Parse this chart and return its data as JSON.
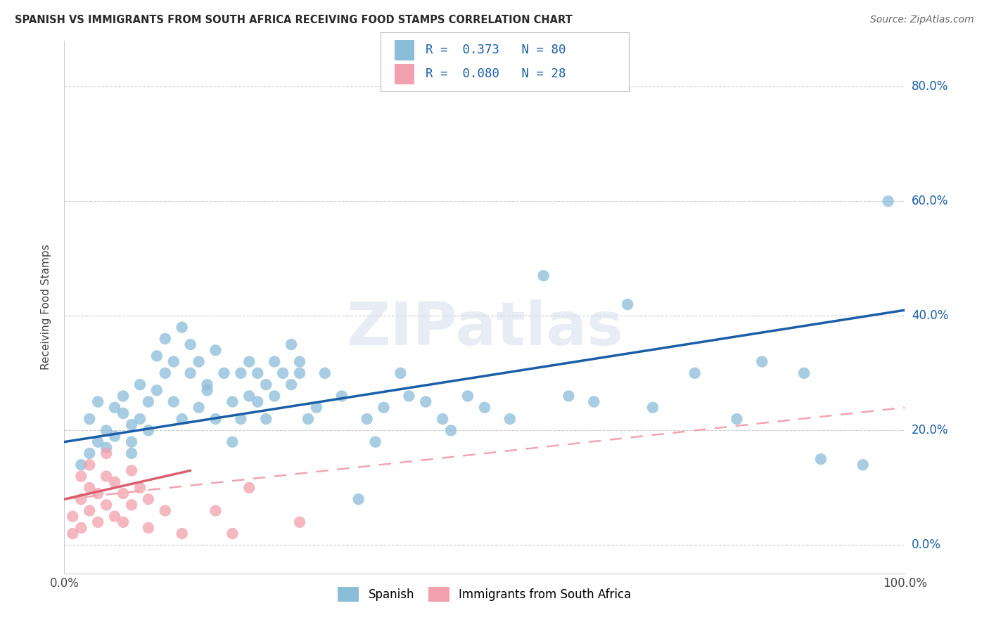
{
  "title": "SPANISH VS IMMIGRANTS FROM SOUTH AFRICA RECEIVING FOOD STAMPS CORRELATION CHART",
  "source": "Source: ZipAtlas.com",
  "ylabel": "Receiving Food Stamps",
  "y_tick_vals": [
    0,
    20,
    40,
    60,
    80
  ],
  "y_tick_labels": [
    "0.0%",
    "20.0%",
    "40.0%",
    "60.0%",
    "80.0%"
  ],
  "x_range": [
    0,
    100
  ],
  "y_range": [
    -5,
    88
  ],
  "legend1_label": "Spanish",
  "legend2_label": "Immigrants from South Africa",
  "R1": "0.373",
  "N1": "80",
  "R2": "0.080",
  "N2": "28",
  "color_blue": "#8BBDD9",
  "color_pink": "#F2A0AD",
  "color_blue_line": "#1A5EA8",
  "color_pink_line_solid": "#D95F6E",
  "color_pink_line_dashed": "#F2A0AD",
  "watermark_text": "ZIPatlas",
  "watermark_color": "#D5DEED",
  "blue_x": [
    2,
    3,
    3,
    4,
    4,
    5,
    5,
    6,
    6,
    7,
    7,
    8,
    8,
    8,
    9,
    9,
    10,
    10,
    11,
    11,
    12,
    12,
    13,
    13,
    14,
    14,
    15,
    15,
    16,
    16,
    17,
    17,
    18,
    18,
    19,
    20,
    20,
    21,
    21,
    22,
    22,
    23,
    23,
    24,
    24,
    25,
    25,
    26,
    27,
    27,
    28,
    28,
    29,
    30,
    31,
    33,
    35,
    36,
    37,
    38,
    40,
    41,
    43,
    45,
    46,
    48,
    50,
    53,
    57,
    60,
    63,
    67,
    70,
    75,
    80,
    83,
    88,
    90,
    95,
    98
  ],
  "blue_y": [
    14,
    16,
    22,
    18,
    25,
    20,
    17,
    24,
    19,
    23,
    26,
    21,
    16,
    18,
    28,
    22,
    25,
    20,
    33,
    27,
    30,
    36,
    25,
    32,
    38,
    22,
    35,
    30,
    24,
    32,
    28,
    27,
    22,
    34,
    30,
    18,
    25,
    22,
    30,
    26,
    32,
    25,
    30,
    28,
    22,
    32,
    26,
    30,
    28,
    35,
    30,
    32,
    22,
    24,
    30,
    26,
    8,
    22,
    18,
    24,
    30,
    26,
    25,
    22,
    20,
    26,
    24,
    22,
    47,
    26,
    25,
    42,
    24,
    30,
    22,
    32,
    30,
    15,
    14,
    60
  ],
  "pink_x": [
    1,
    1,
    2,
    2,
    2,
    3,
    3,
    3,
    4,
    4,
    5,
    5,
    5,
    6,
    6,
    7,
    7,
    8,
    8,
    9,
    10,
    10,
    12,
    14,
    18,
    20,
    22,
    28
  ],
  "pink_y": [
    2,
    5,
    3,
    8,
    12,
    6,
    10,
    14,
    4,
    9,
    7,
    12,
    16,
    5,
    11,
    4,
    9,
    7,
    13,
    10,
    3,
    8,
    6,
    2,
    6,
    2,
    10,
    4
  ],
  "blue_line_x0": 0,
  "blue_line_x1": 100,
  "blue_line_y0": 18,
  "blue_line_y1": 41,
  "pink_solid_x0": 0,
  "pink_solid_x1": 15,
  "pink_solid_y0": 8,
  "pink_solid_y1": 13,
  "pink_dashed_x0": 0,
  "pink_dashed_x1": 100,
  "pink_dashed_y0": 8,
  "pink_dashed_y1": 24,
  "grid_color": "#cccccc",
  "spine_color": "#cccccc"
}
